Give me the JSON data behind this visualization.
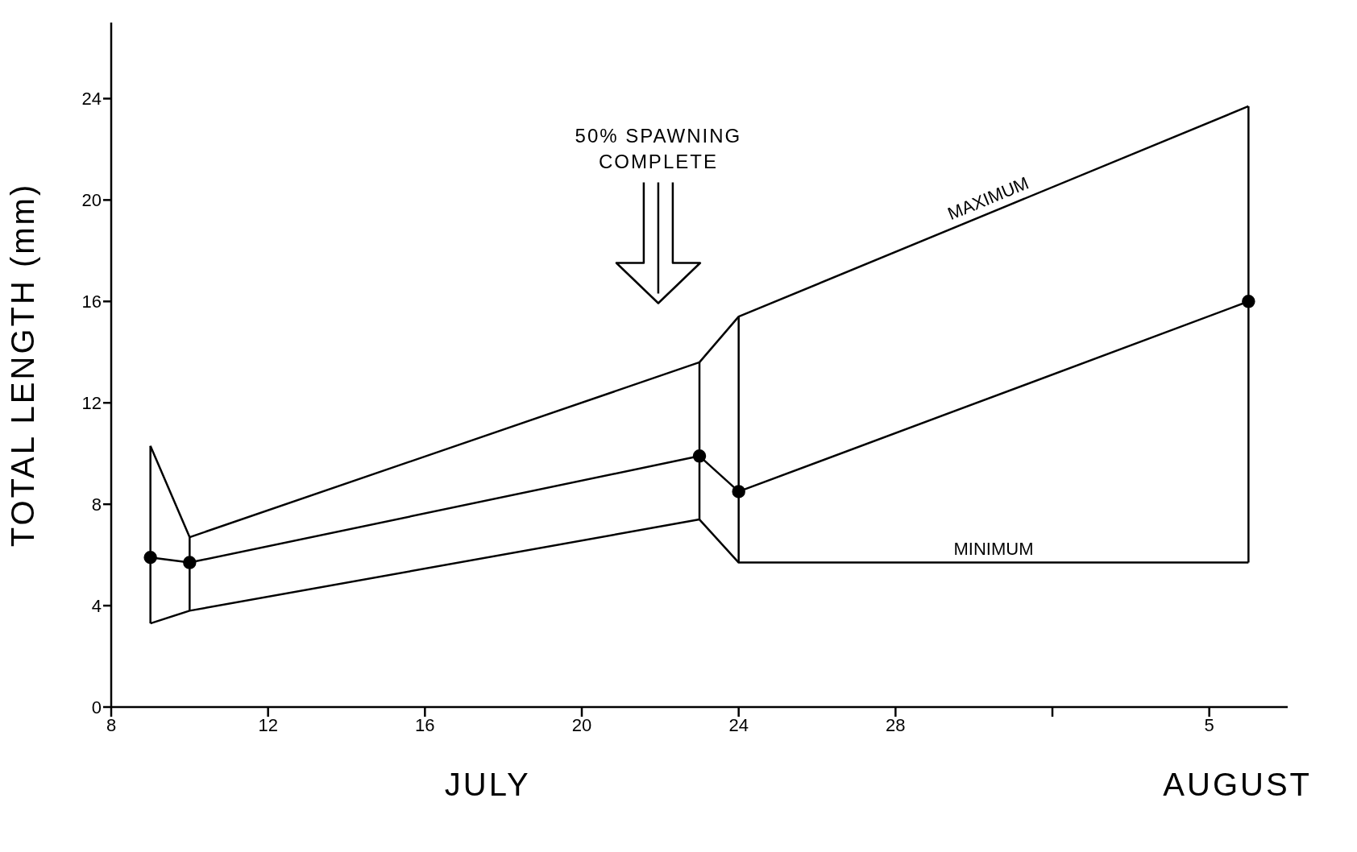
{
  "chart_data": {
    "type": "line",
    "ylabel": "TOTAL LENGTH (mm)",
    "x": [
      "--07-09",
      "--07-10",
      "--07-23",
      "--07-24",
      "--08-06"
    ],
    "series": [
      {
        "name": "MAXIMUM",
        "color": "#000000",
        "marker": "none",
        "values": [
          10.3,
          6.7,
          13.6,
          15.4,
          23.7
        ]
      },
      {
        "color": "#000000",
        "marker": "circle",
        "values": [
          5.9,
          5.7,
          9.9,
          8.5,
          16.0
        ],
        "errors": [
          [
            3.3,
            10.3
          ],
          [
            3.8,
            6.7
          ],
          [
            7.4,
            13.6
          ],
          [
            5.7,
            15.4
          ],
          [
            5.7,
            23.7
          ]
        ]
      },
      {
        "name": "MINIMUM",
        "color": "#000000",
        "marker": "none",
        "values": [
          3.3,
          3.8,
          7.4,
          5.7,
          5.7
        ]
      }
    ],
    "xlim": [
      "--07-08",
      "--08-07"
    ],
    "xticks": [
      {
        "value": "--07-08",
        "label": "8"
      },
      {
        "value": "--07-12",
        "label": "12"
      },
      {
        "value": "--07-16",
        "label": "16"
      },
      {
        "value": "--07-20",
        "label": "20"
      },
      {
        "value": "--07-24",
        "label": "24"
      },
      {
        "value": "--07-28",
        "label": "28"
      },
      {
        "value": "--08-01",
        "label": null
      },
      {
        "value": "--08-05",
        "label": "5"
      }
    ],
    "ylim": [
      0,
      27
    ],
    "yticks": [
      0,
      4,
      8,
      12,
      16,
      20,
      24
    ],
    "annotations": [
      "50% SPAWNING COMPLETE",
      "JULY",
      "AUGUST"
    ],
    "grid": false,
    "legend": false,
    "line_style": "solid"
  }
}
